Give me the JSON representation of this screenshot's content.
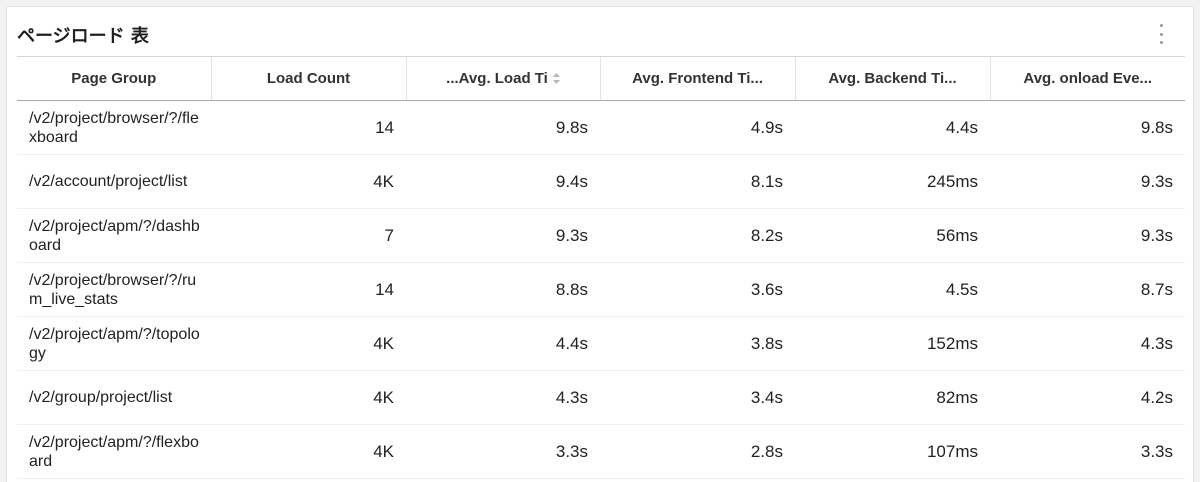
{
  "panel": {
    "title": "ページロード 表",
    "menu_icon": "more-vertical-icon"
  },
  "table": {
    "columns": [
      {
        "label": "Page Group",
        "sorted": false
      },
      {
        "label": "Load Count",
        "sorted": false
      },
      {
        "label": "...Avg. Load Ti",
        "sorted": true,
        "sort_icon": "sort-updown-icon"
      },
      {
        "label": "Avg. Frontend Ti...",
        "sorted": false
      },
      {
        "label": "Avg. Backend Ti...",
        "sorted": false
      },
      {
        "label": "Avg. onload Eve...",
        "sorted": false
      }
    ],
    "rows": [
      {
        "page_group": "/v2/project/browser/?/flexboard",
        "load_count": "14",
        "avg_load": "9.8s",
        "avg_frontend": "4.9s",
        "avg_backend": "4.4s",
        "avg_onload": "9.8s"
      },
      {
        "page_group": "/v2/account/project/list",
        "load_count": "4K",
        "avg_load": "9.4s",
        "avg_frontend": "8.1s",
        "avg_backend": "245ms",
        "avg_onload": "9.3s"
      },
      {
        "page_group": "/v2/project/apm/?/dashboard",
        "load_count": "7",
        "avg_load": "9.3s",
        "avg_frontend": "8.2s",
        "avg_backend": "56ms",
        "avg_onload": "9.3s"
      },
      {
        "page_group": "/v2/project/browser/?/rum_live_stats",
        "load_count": "14",
        "avg_load": "8.8s",
        "avg_frontend": "3.6s",
        "avg_backend": "4.5s",
        "avg_onload": "8.7s"
      },
      {
        "page_group": "/v2/project/apm/?/topology",
        "load_count": "4K",
        "avg_load": "4.4s",
        "avg_frontend": "3.8s",
        "avg_backend": "152ms",
        "avg_onload": "4.3s"
      },
      {
        "page_group": "/v2/group/project/list",
        "load_count": "4K",
        "avg_load": "4.3s",
        "avg_frontend": "3.4s",
        "avg_backend": "82ms",
        "avg_onload": "4.2s"
      },
      {
        "page_group": "/v2/project/apm/?/flexboard",
        "load_count": "4K",
        "avg_load": "3.3s",
        "avg_frontend": "2.8s",
        "avg_backend": "107ms",
        "avg_onload": "3.3s"
      }
    ]
  }
}
